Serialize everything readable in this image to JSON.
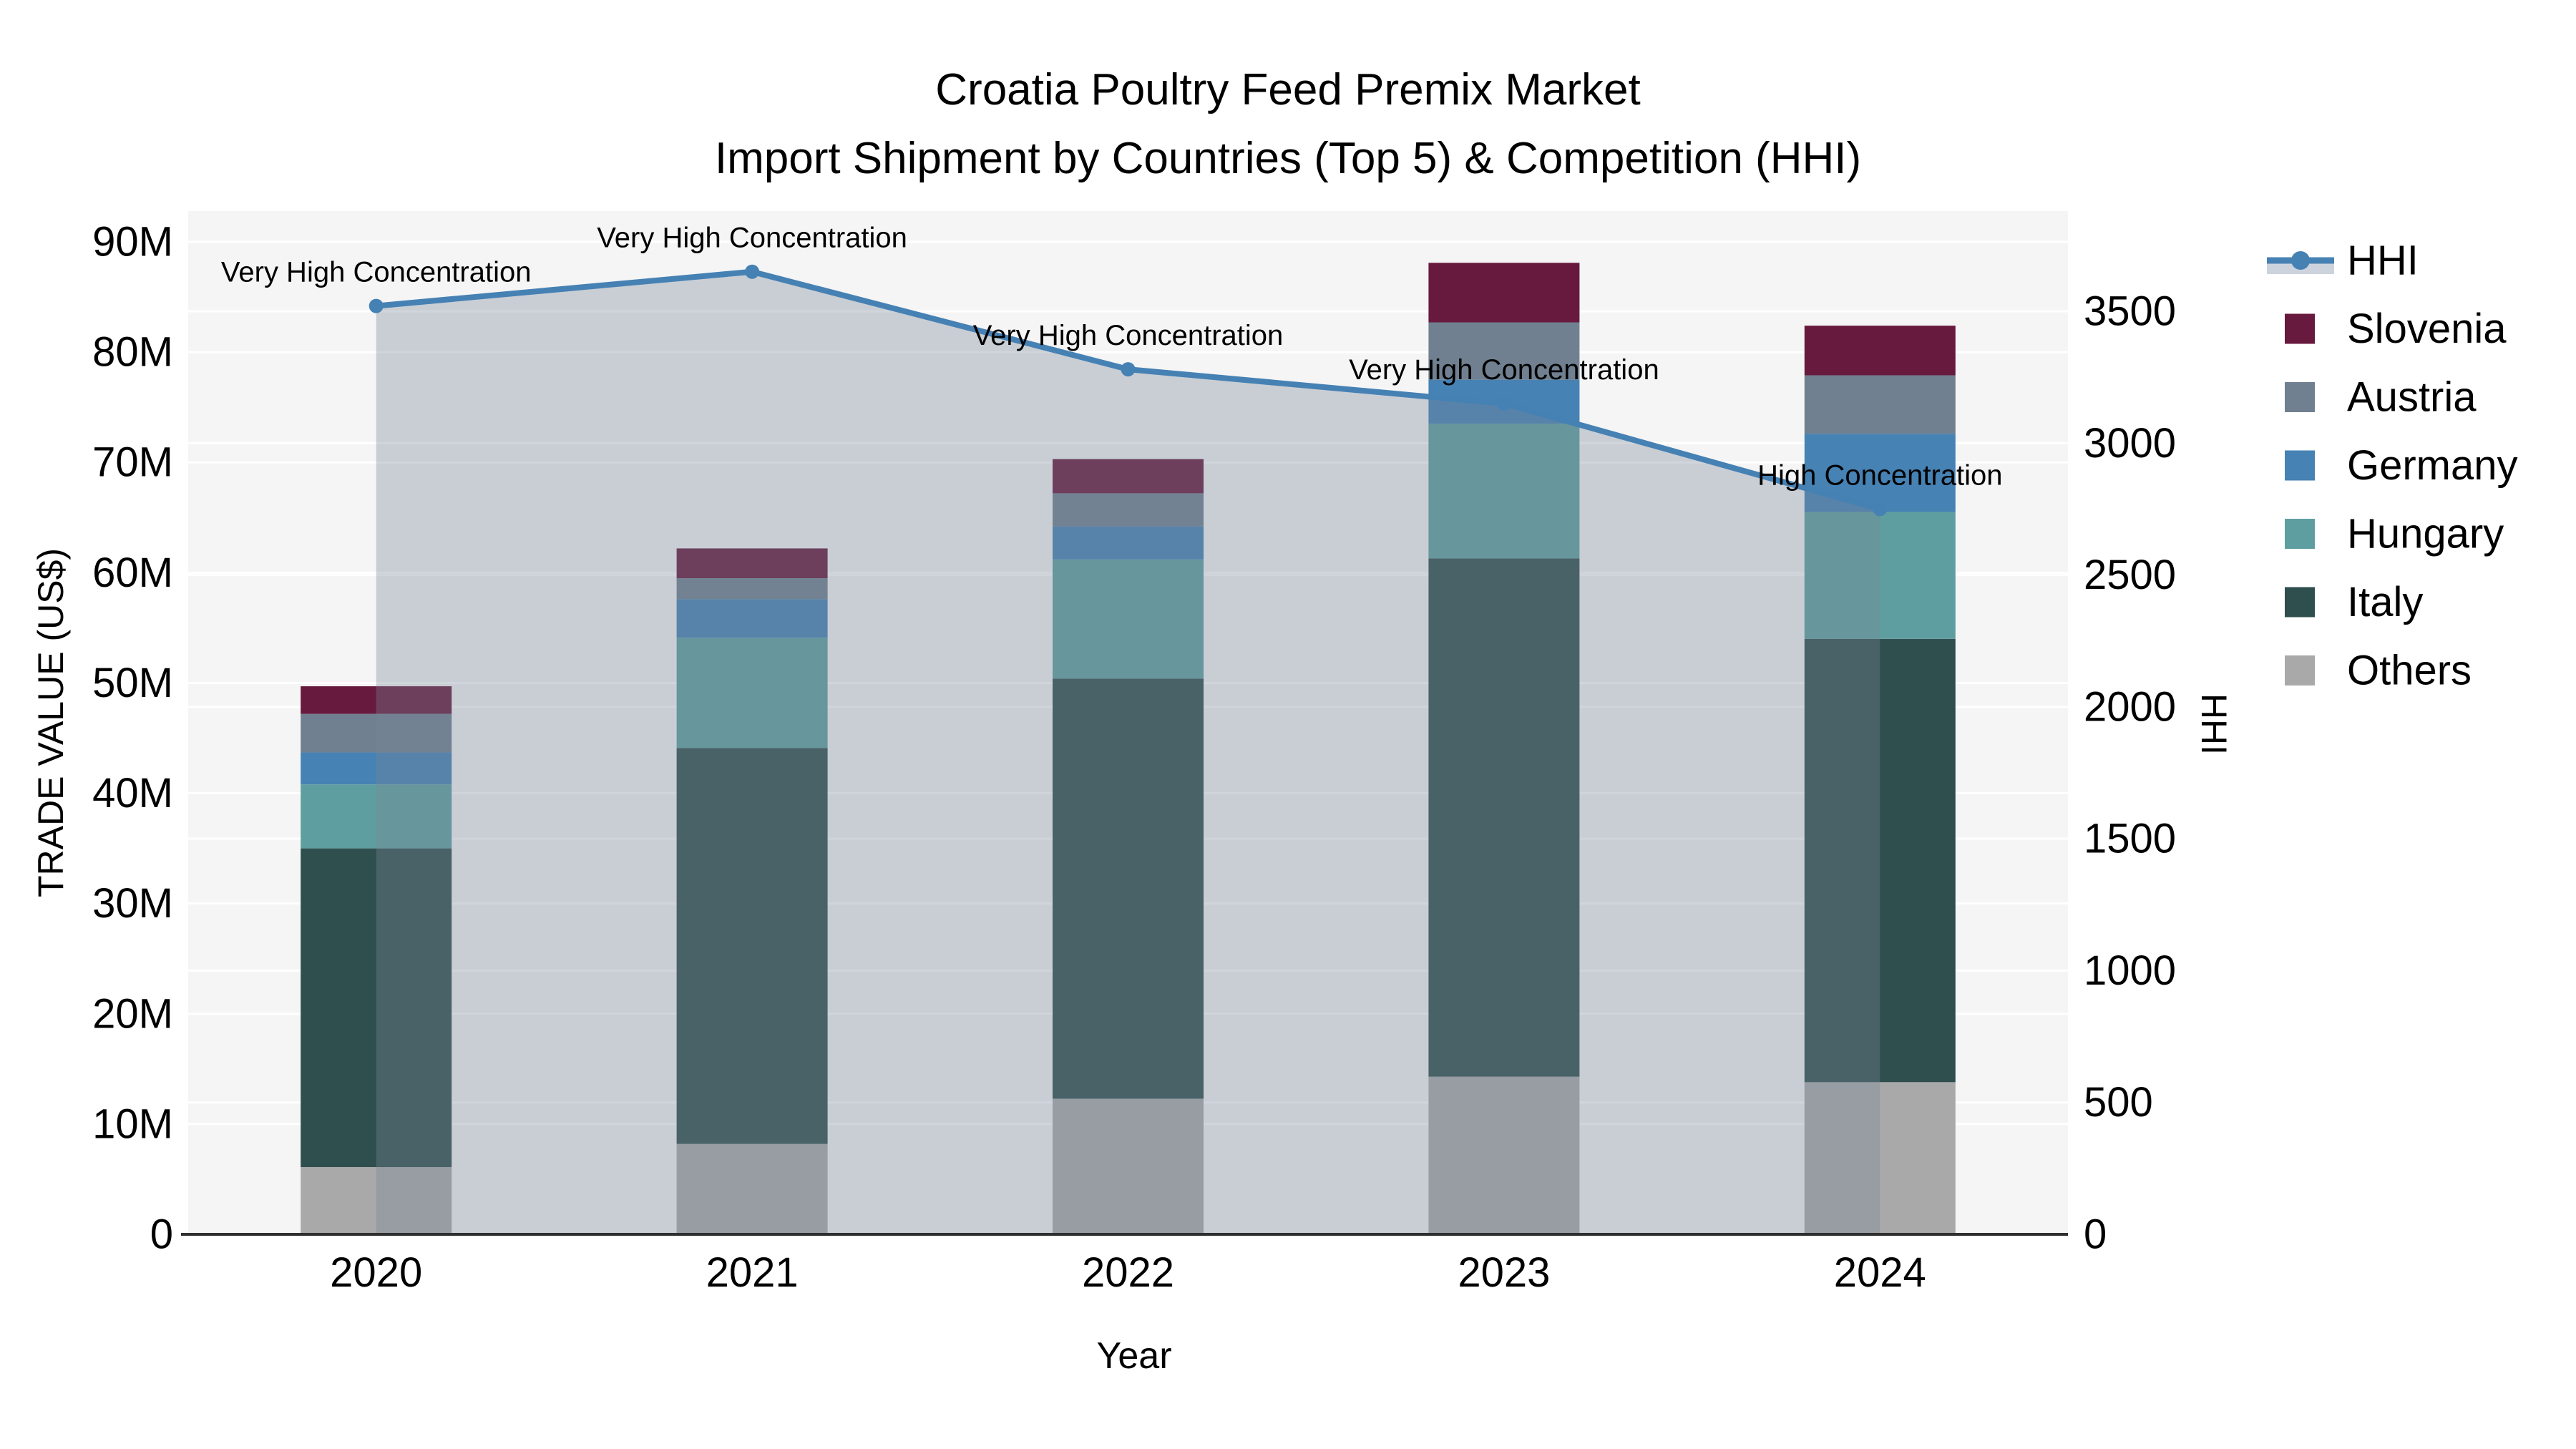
{
  "title": {
    "line1": "Croatia Poultry Feed Premix Market",
    "line2": "Import Shipment by Countries (Top 5) & Competition (HHI)"
  },
  "axes": {
    "x_label": "Year",
    "y_left_label": "TRADE VALUE (US$)",
    "y_right_label": "HHI",
    "y_left_ticks": [
      "0",
      "10M",
      "20M",
      "30M",
      "40M",
      "50M",
      "60M",
      "70M",
      "80M",
      "90M"
    ],
    "y_right_ticks": [
      "0",
      "500",
      "1000",
      "1500",
      "2000",
      "2500",
      "3000",
      "3500"
    ]
  },
  "legend": {
    "position": "right",
    "items": [
      {
        "label": "HHI",
        "type": "line",
        "color": "#4681B4",
        "band_color": "#CDD3DC"
      },
      {
        "label": "Slovenia",
        "type": "swatch",
        "color": "#681A3E"
      },
      {
        "label": "Austria",
        "type": "swatch",
        "color": "#708090"
      },
      {
        "label": "Germany",
        "type": "swatch",
        "color": "#4682B4"
      },
      {
        "label": "Hungary",
        "type": "swatch",
        "color": "#5F9EA0"
      },
      {
        "label": "Italy",
        "type": "swatch",
        "color": "#2F4F4F"
      },
      {
        "label": "Others",
        "type": "swatch",
        "color": "#A9A9A9"
      }
    ]
  },
  "chart_data": {
    "type": "combo-stacked-bar-and-line",
    "categories": [
      "2020",
      "2021",
      "2022",
      "2023",
      "2024"
    ],
    "bar_value_unit": "USD millions",
    "series": [
      {
        "name": "Others",
        "color": "#A9A9A9",
        "values": [
          6.1,
          8.2,
          12.3,
          14.3,
          13.8
        ]
      },
      {
        "name": "Italy",
        "color": "#2F4F4F",
        "values": [
          28.9,
          35.9,
          38.1,
          47.0,
          40.2
        ]
      },
      {
        "name": "Hungary",
        "color": "#5F9EA0",
        "values": [
          5.8,
          10.0,
          10.8,
          12.2,
          11.5
        ]
      },
      {
        "name": "Germany",
        "color": "#4682B4",
        "values": [
          2.9,
          3.5,
          3.0,
          4.0,
          7.1
        ]
      },
      {
        "name": "Austria",
        "color": "#708090",
        "values": [
          3.5,
          1.9,
          3.0,
          5.2,
          5.3
        ]
      },
      {
        "name": "Slovenia",
        "color": "#681A3E",
        "values": [
          2.5,
          2.7,
          3.1,
          5.4,
          4.5
        ]
      }
    ],
    "bar_totals": [
      49.7,
      62.2,
      70.3,
      88.1,
      82.4
    ],
    "hhi": {
      "name": "HHI",
      "color": "#4681B4",
      "fill": "rgba(119,136,153,0.35)",
      "values": [
        3520,
        3650,
        3280,
        3150,
        2750
      ]
    },
    "annotations": [
      {
        "category": "2020",
        "text": "Very High Concentration"
      },
      {
        "category": "2021",
        "text": "Very High Concentration"
      },
      {
        "category": "2022",
        "text": "Very High Concentration"
      },
      {
        "category": "2023",
        "text": "Very High Concentration"
      },
      {
        "category": "2024",
        "text": "High Concentration"
      }
    ],
    "y_left_range": [
      0,
      90
    ],
    "y_right_range": [
      0,
      3500
    ],
    "grid": true,
    "plot_background": "#F5F5F5",
    "gridline_color": "#FFFFFF",
    "legend_position": "right"
  }
}
